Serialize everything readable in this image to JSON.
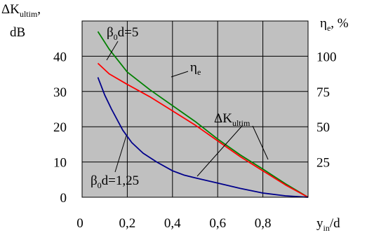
{
  "chart_data": {
    "type": "line",
    "x_axis": {
      "range": [
        0,
        1.0
      ],
      "ticks": [
        0,
        0.2,
        0.4,
        0.6,
        0.8
      ],
      "tick_labels": [
        "0",
        "0,2",
        "0,4",
        "0,6",
        "0,8"
      ],
      "label_main": "y",
      "label_sub": "in",
      "label_tail": "/d"
    },
    "y_left": {
      "range": [
        0,
        50
      ],
      "ticks": [
        0,
        10,
        20,
        30,
        40
      ],
      "tick_labels": [
        "0",
        "10",
        "20",
        "30",
        "40"
      ],
      "label_line1_main": "ΔK",
      "label_line1_sub": "ultim",
      "label_line1_tail": ",",
      "label_line2": "dB"
    },
    "y_right": {
      "range": [
        0,
        125
      ],
      "ticks": [
        25,
        50,
        75,
        100
      ],
      "tick_labels": [
        "25",
        "50",
        "75",
        "100"
      ],
      "label_main": "η",
      "label_sub": "e",
      "label_tail": ", %"
    },
    "grid": true,
    "plot_background": "#c0c0c0",
    "series": [
      {
        "name": "β0d=5",
        "axis": "left",
        "color": "#008000",
        "x": [
          0.07,
          0.12,
          0.2,
          0.3,
          0.4,
          0.5,
          0.6,
          0.7,
          0.8,
          0.9,
          1.0
        ],
        "y": [
          47,
          42,
          35.5,
          30.5,
          26,
          21.5,
          16.5,
          12,
          8,
          3.8,
          0
        ]
      },
      {
        "name": "ηe",
        "axis": "left",
        "color": "#ff0000",
        "x": [
          0.07,
          0.12,
          0.2,
          0.3,
          0.4,
          0.5,
          0.6,
          0.7,
          0.8,
          0.9,
          1.0
        ],
        "y": [
          38,
          35,
          32,
          28.5,
          24.5,
          20.5,
          16,
          11.5,
          7.5,
          3.5,
          0
        ]
      },
      {
        "name": "β0d=1,25",
        "axis": "left",
        "color": "#00008b",
        "x": [
          0.07,
          0.1,
          0.13,
          0.18,
          0.22,
          0.27,
          0.33,
          0.4,
          0.45,
          0.5,
          0.6,
          0.7,
          0.8,
          0.9,
          1.0
        ],
        "y": [
          34,
          29,
          25,
          19,
          15.5,
          12.5,
          10,
          7.5,
          6.3,
          5.5,
          4,
          2.5,
          1.2,
          0.4,
          0
        ]
      }
    ],
    "annotations": {
      "beta5": {
        "main": "β",
        "sub": "0",
        "tail": "d=5"
      },
      "eta": {
        "main": "η",
        "sub": "e"
      },
      "dk": {
        "main": "ΔK",
        "sub": "ultim"
      },
      "beta125": {
        "main": "β",
        "sub": "0",
        "tail": "d=1,25"
      }
    }
  }
}
